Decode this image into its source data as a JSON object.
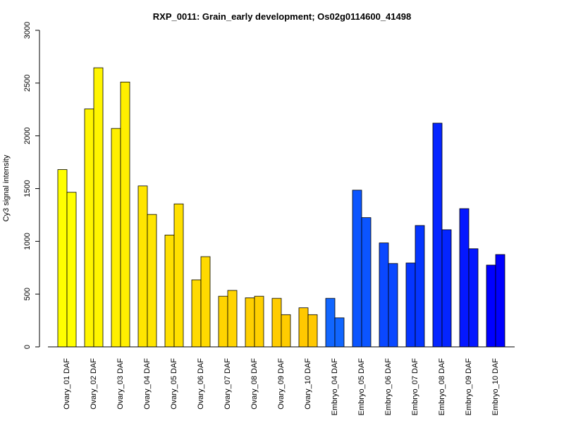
{
  "chart_data": {
    "type": "bar",
    "title": "RXP_0011: Grain_early development; Os02g0114600_41498",
    "xlabel": "",
    "ylabel": "Cy3 signal intensity",
    "ylim": [
      0,
      3000
    ],
    "yticks": [
      "0",
      "500",
      "1000",
      "1500",
      "2000",
      "2500",
      "3000"
    ],
    "grid": false,
    "legend": "none",
    "categories": [
      "Ovary_01 DAF",
      "Ovary_02 DAF",
      "Ovary_03 DAF",
      "Ovary_04 DAF",
      "Ovary_05 DAF",
      "Ovary_06 DAF",
      "Ovary_07 DAF",
      "Ovary_08 DAF",
      "Ovary_09 DAF",
      "Ovary_10 DAF",
      "Embryo_04 DAF",
      "Embryo_05 DAF",
      "Embryo_06 DAF",
      "Embryo_07 DAF",
      "Embryo_08 DAF",
      "Embryo_09 DAF",
      "Embryo_10 DAF"
    ],
    "series": [
      {
        "values": [
          1680,
          2255,
          2070,
          1525,
          1060,
          635,
          480,
          465,
          460,
          370,
          460,
          1485,
          985,
          795,
          2120,
          1310,
          775
        ]
      },
      {
        "values": [
          1465,
          2645,
          2510,
          1255,
          1355,
          855,
          535,
          480,
          305,
          305,
          275,
          1225,
          790,
          1150,
          1110,
          930,
          875
        ]
      }
    ],
    "bar_colors": [
      "#FFFF00",
      "#FFF500",
      "#FFEF00",
      "#FFE500",
      "#FFE000",
      "#FFDA00",
      "#FFD400",
      "#FFD000",
      "#FFCC00",
      "#FFC800",
      "#1166FF",
      "#0B55FF",
      "#0A48FF",
      "#0535FF",
      "#0525FF",
      "#0518FF",
      "#0000FF"
    ]
  }
}
